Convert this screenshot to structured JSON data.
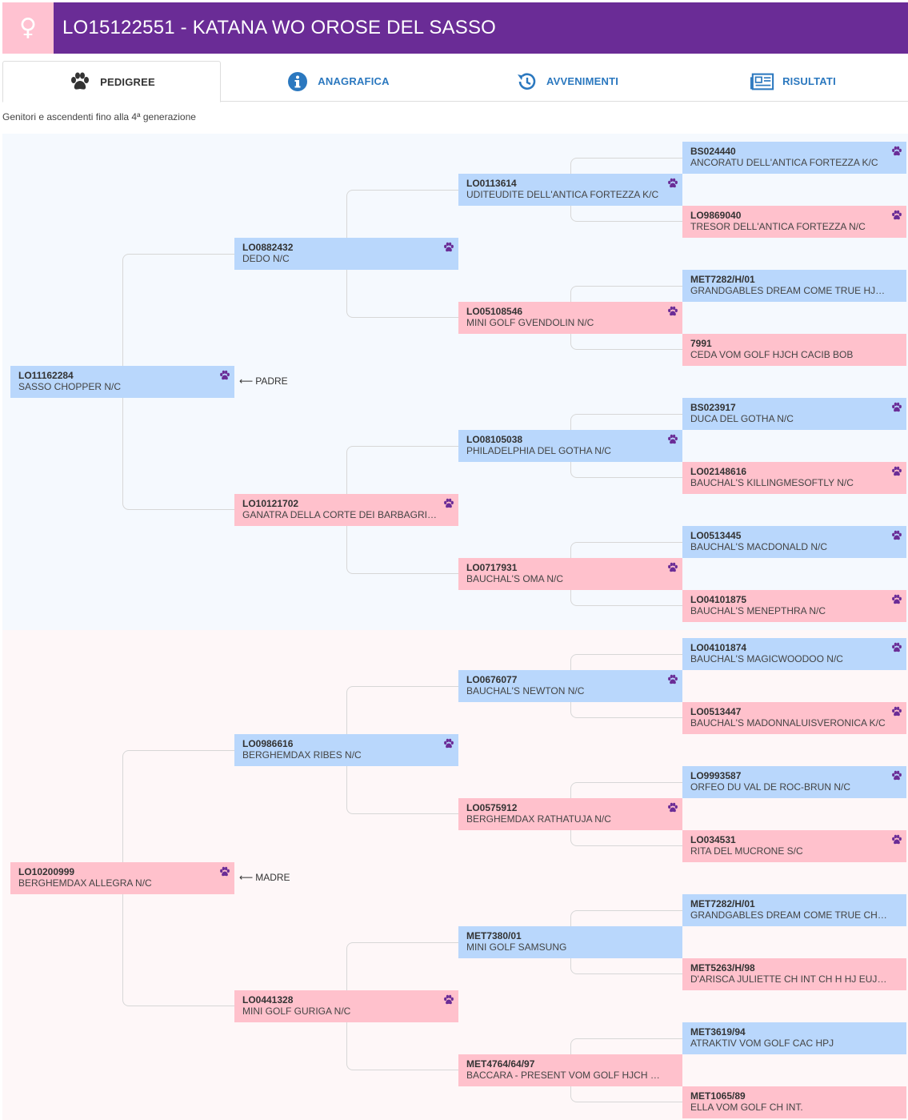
{
  "header": {
    "sex_symbol": "♀",
    "title": "LO15122551 - KATANA WO OROSE DEL SASSO",
    "bg_color": "#6a2c96",
    "sex_color": "#ffc2d1"
  },
  "tabs": [
    {
      "label": "PEDIGREE",
      "icon": "paw-icon",
      "active": true
    },
    {
      "label": "ANAGRAFICA",
      "icon": "info-icon",
      "active": false
    },
    {
      "label": "AVVENIMENTI",
      "icon": "history-icon",
      "active": false
    },
    {
      "label": "RISULTATI",
      "icon": "newspaper-icon",
      "active": false
    }
  ],
  "subtitle": "Genitori e ascendenti fino alla 4ª generazione",
  "labels": {
    "sire": "PADRE",
    "dam": "MADRE",
    "arrow": "⟵"
  },
  "colors": {
    "male": "#b9d7fc",
    "female": "#ffc1cc",
    "paw": "#6a2c96"
  },
  "pedigree": {
    "sire": {
      "code": "LO11162284",
      "name": "SASSO CHOPPER N/C",
      "sex": "male"
    },
    "sire_sire": {
      "code": "LO0882432",
      "name": "DEDO N/C",
      "sex": "male"
    },
    "sire_sire_sire": {
      "code": "LO0113614",
      "name": "UDITEUDITE DELL'ANTICA FORTEZZA K/C",
      "sex": "male"
    },
    "sire_sire_sire_sire": {
      "code": "BS024440",
      "name": "ANCORATU DELL'ANTICA FORTEZZA K/C",
      "sex": "male"
    },
    "sire_sire_sire_dam": {
      "code": "LO9869040",
      "name": "TRESOR DELL'ANTICA FORTEZZA N/C",
      "sex": "female"
    },
    "sire_sire_dam": {
      "code": "LO05108546",
      "name": "MINI GOLF GVENDOLIN N/C",
      "sex": "female"
    },
    "sire_sire_dam_sire": {
      "code": "MET7282/H/01",
      "name": "GRANDGABLES DREAM COME TRUE HJ CH H...",
      "sex": "male"
    },
    "sire_sire_dam_dam": {
      "code": "7991",
      "name": "CEDA VOM GOLF HJCH CACIB BOB",
      "sex": "female"
    },
    "sire_dam": {
      "code": "LO10121702",
      "name": "GANATRA DELLA CORTE DEI BARBAGRIGIA N...",
      "sex": "female"
    },
    "sire_dam_sire": {
      "code": "LO08105038",
      "name": "PHILADELPHIA DEL GOTHA N/C",
      "sex": "male"
    },
    "sire_dam_sire_sire": {
      "code": "BS023917",
      "name": "DUCA DEL GOTHA N/C",
      "sex": "male"
    },
    "sire_dam_sire_dam": {
      "code": "LO02148616",
      "name": "BAUCHAL'S KILLINGMESOFTLY N/C",
      "sex": "female"
    },
    "sire_dam_dam": {
      "code": "LO0717931",
      "name": "BAUCHAL'S OMA N/C",
      "sex": "female"
    },
    "sire_dam_dam_sire": {
      "code": "LO0513445",
      "name": "BAUCHAL'S MACDONALD N/C",
      "sex": "male"
    },
    "sire_dam_dam_dam": {
      "code": "LO04101875",
      "name": "BAUCHAL'S MENEPTHRA N/C",
      "sex": "female"
    },
    "dam": {
      "code": "LO10200999",
      "name": "BERGHEMDAX ALLEGRA N/C",
      "sex": "female"
    },
    "dam_sire": {
      "code": "LO0986616",
      "name": "BERGHEMDAX RIBES N/C",
      "sex": "male"
    },
    "dam_sire_sire": {
      "code": "LO0676077",
      "name": "BAUCHAL'S NEWTON N/C",
      "sex": "male"
    },
    "dam_sire_sire_sire": {
      "code": "LO04101874",
      "name": "BAUCHAL'S MAGICWOODOO N/C",
      "sex": "male"
    },
    "dam_sire_sire_dam": {
      "code": "LO0513447",
      "name": "BAUCHAL'S MADONNALUISVERONICA K/C",
      "sex": "female"
    },
    "dam_sire_dam": {
      "code": "LO0575912",
      "name": "BERGHEMDAX RATHATUJA N/C",
      "sex": "female"
    },
    "dam_sire_dam_sire": {
      "code": "LO9993587",
      "name": "ORFEO DU VAL DE ROC-BRUN N/C",
      "sex": "male"
    },
    "dam_sire_dam_dam": {
      "code": "LO034531",
      "name": "RITA DEL MUCRONE S/C",
      "sex": "female"
    },
    "dam_dam": {
      "code": "LO0441328",
      "name": "MINI GOLF GURIGA N/C",
      "sex": "female"
    },
    "dam_dam_sire": {
      "code": "MET7380/01",
      "name": "MINI GOLF SAMSUNG",
      "sex": "male"
    },
    "dam_dam_sire_sire": {
      "code": "MET7282/H/01",
      "name": "GRANDGABLES DREAM COME TRUE CH INT J...",
      "sex": "male"
    },
    "dam_dam_sire_dam": {
      "code": "MET5263/H/98",
      "name": "D'ARISCA JULIETTE CH INT CH H HJ EUJ PL E...",
      "sex": "female"
    },
    "dam_dam_dam": {
      "code": "MET4764/64/97",
      "name": "BACCARA - PRESENT VOM GOLF HJCH HG C...",
      "sex": "female"
    },
    "dam_dam_dam_sire": {
      "code": "MET3619/94",
      "name": "ATRAKTIV VOM GOLF CAC HPJ",
      "sex": "male"
    },
    "dam_dam_dam_dam": {
      "code": "MET1065/89",
      "name": "ELLA VOM GOLF CH INT.",
      "sex": "female"
    }
  }
}
